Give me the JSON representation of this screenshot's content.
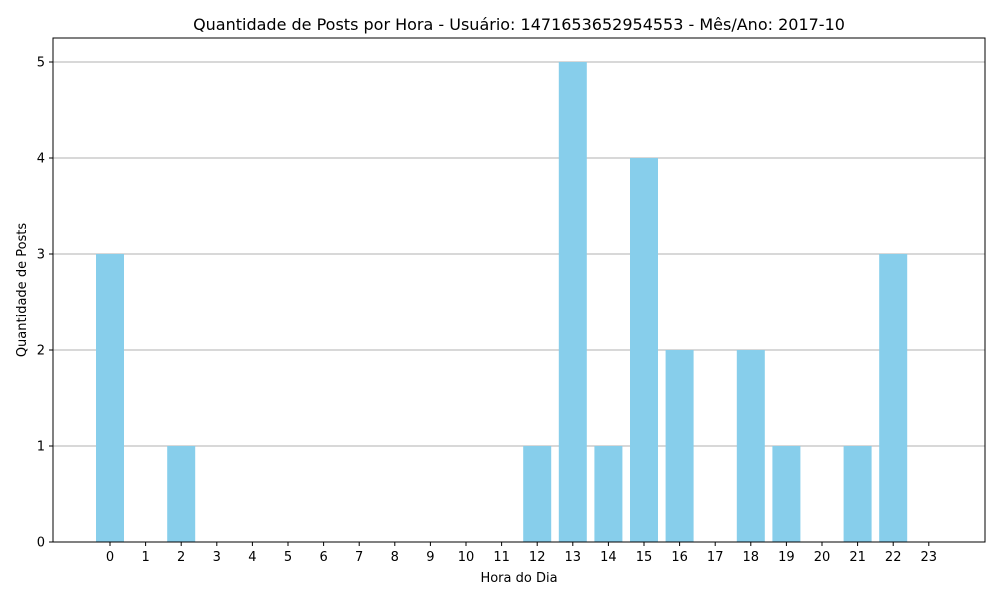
{
  "chart_data": {
    "type": "bar",
    "title": "Quantidade de Posts por Hora - Usuário: 1471653652954553 - Mês/Ano: 2017-10",
    "xlabel": "Hora do Dia",
    "ylabel": "Quantidade de Posts",
    "categories": [
      "0",
      "1",
      "2",
      "3",
      "4",
      "5",
      "6",
      "7",
      "8",
      "9",
      "10",
      "11",
      "12",
      "13",
      "14",
      "15",
      "16",
      "17",
      "18",
      "19",
      "20",
      "21",
      "22",
      "23"
    ],
    "values": [
      3,
      0,
      1,
      0,
      0,
      0,
      0,
      0,
      0,
      0,
      0,
      0,
      1,
      5,
      1,
      4,
      2,
      0,
      2,
      1,
      0,
      1,
      3,
      0
    ],
    "ylim": [
      0,
      5.25
    ],
    "yticks": [
      0,
      1,
      2,
      3,
      4,
      5
    ],
    "grid": "horizontal",
    "bar_color": "#87ceeb",
    "grid_color": "#b0b0b0"
  }
}
